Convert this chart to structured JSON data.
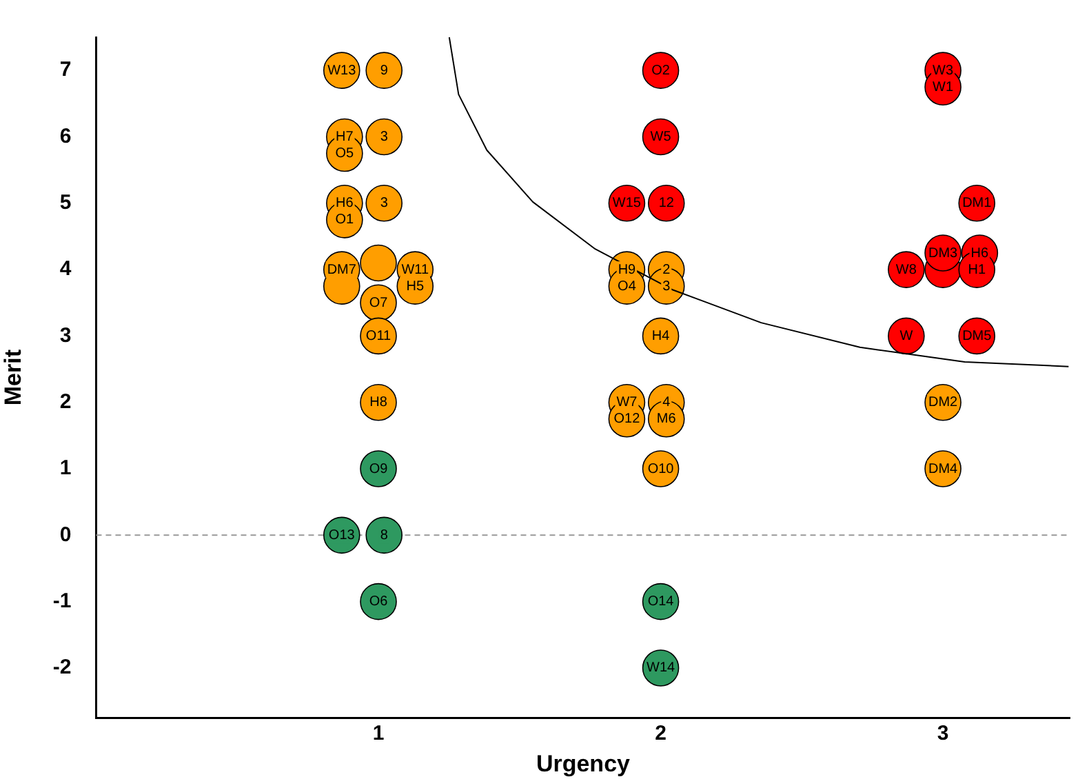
{
  "chart_data": {
    "type": "scatter",
    "xlabel": "Urgency",
    "ylabel": "Merit",
    "xlim": [
      0,
      3.45
    ],
    "ylim": [
      -2.75,
      7.5
    ],
    "xticks": [
      1,
      2,
      3
    ],
    "yticks": [
      -2,
      -1,
      0,
      1,
      2,
      3,
      4,
      5,
      6,
      7
    ],
    "grid": false,
    "legend": false,
    "marker": "circle",
    "ref_lines": [
      {
        "axis": "y",
        "value": 0,
        "color": "#999999",
        "line_style": "dashed"
      }
    ],
    "series": [
      {
        "color": "#ff9e00",
        "x": [
          1.02,
          0.87,
          1.02,
          0.88,
          0.88,
          1.02,
          0.88,
          0.88,
          1.0,
          1.13,
          0.87,
          0.87,
          1.13,
          1.0,
          1.0,
          1.0,
          2.02,
          1.88,
          2.02,
          1.88,
          2.0,
          2.02,
          1.88,
          2.02,
          1.88,
          2.0,
          3.0,
          3.0
        ],
        "values": [
          7,
          7,
          6,
          6,
          5.75,
          5,
          5,
          4.75,
          4.1,
          4,
          4,
          3.75,
          3.75,
          3.5,
          3,
          2,
          4,
          4,
          3.75,
          3.75,
          3,
          2,
          2,
          1.75,
          1.75,
          1,
          2,
          1
        ]
      },
      {
        "color": "#ff0000",
        "x": [
          2.0,
          2.0,
          2.02,
          1.88,
          3.0,
          3.0,
          3.12,
          3.13,
          3.0,
          2.87,
          3.12,
          3.0,
          2.87,
          3.12
        ],
        "values": [
          7,
          6,
          5,
          5,
          7,
          6.75,
          5,
          4.25,
          4,
          4,
          4,
          4.25,
          3,
          3
        ]
      },
      {
        "color": "#2e9960",
        "x": [
          1.0,
          1.02,
          0.87,
          1.0,
          2.0,
          2.0
        ],
        "values": [
          1,
          0,
          0,
          -1,
          -1,
          -2
        ]
      },
      {
        "type": "line",
        "color": "#000000",
        "marker": "none",
        "line_style": "solid",
        "x": [
          1.251,
          1.284,
          1.384,
          1.547,
          1.768,
          2.04,
          2.356,
          2.706,
          3.077,
          3.445
        ],
        "values": [
          7.5,
          6.64,
          5.8,
          5.02,
          4.31,
          3.7,
          3.2,
          2.83,
          2.61,
          2.54
        ]
      }
    ],
    "annotations": [
      {
        "text": "9",
        "x": 1.02,
        "y": 7
      },
      {
        "text": "W13",
        "x": 0.87,
        "y": 7
      },
      {
        "text": "3",
        "x": 1.02,
        "y": 6
      },
      {
        "text": "H7",
        "x": 0.88,
        "y": 6
      },
      {
        "text": "O5",
        "x": 0.88,
        "y": 5.75
      },
      {
        "text": "3",
        "x": 1.02,
        "y": 5
      },
      {
        "text": "H6",
        "x": 0.88,
        "y": 5
      },
      {
        "text": "O1",
        "x": 0.88,
        "y": 4.75
      },
      {
        "text": "W11",
        "x": 1.13,
        "y": 4
      },
      {
        "text": "DM7",
        "x": 0.87,
        "y": 4
      },
      {
        "text": "H5",
        "x": 1.13,
        "y": 3.75
      },
      {
        "text": "O7",
        "x": 1.0,
        "y": 3.5
      },
      {
        "text": "O11",
        "x": 1.0,
        "y": 3
      },
      {
        "text": "H8",
        "x": 1.0,
        "y": 2
      },
      {
        "text": "2",
        "x": 2.02,
        "y": 4
      },
      {
        "text": "H9",
        "x": 1.88,
        "y": 4
      },
      {
        "text": "3",
        "x": 2.02,
        "y": 3.75
      },
      {
        "text": "O4",
        "x": 1.88,
        "y": 3.75
      },
      {
        "text": "H4",
        "x": 2.0,
        "y": 3
      },
      {
        "text": "4",
        "x": 2.02,
        "y": 2
      },
      {
        "text": "W7",
        "x": 1.88,
        "y": 2
      },
      {
        "text": "M6",
        "x": 2.02,
        "y": 1.75
      },
      {
        "text": "O12",
        "x": 1.88,
        "y": 1.75
      },
      {
        "text": "O10",
        "x": 2.0,
        "y": 1
      },
      {
        "text": "DM2",
        "x": 3.0,
        "y": 2
      },
      {
        "text": "DM4",
        "x": 3.0,
        "y": 1
      },
      {
        "text": "O2",
        "x": 2.0,
        "y": 7
      },
      {
        "text": "W5",
        "x": 2.0,
        "y": 6
      },
      {
        "text": "12",
        "x": 2.02,
        "y": 5
      },
      {
        "text": "W15",
        "x": 1.88,
        "y": 5
      },
      {
        "text": "W3",
        "x": 3.0,
        "y": 7
      },
      {
        "text": "W1",
        "x": 3.0,
        "y": 6.75
      },
      {
        "text": "DM1",
        "x": 3.12,
        "y": 5
      },
      {
        "text": "H6",
        "x": 3.13,
        "y": 4.25
      },
      {
        "text": "W8",
        "x": 2.87,
        "y": 4
      },
      {
        "text": "H1",
        "x": 3.12,
        "y": 4
      },
      {
        "text": "DM3",
        "x": 3.0,
        "y": 4.25
      },
      {
        "text": "W",
        "x": 2.87,
        "y": 3
      },
      {
        "text": "DM5",
        "x": 3.12,
        "y": 3
      },
      {
        "text": "O9",
        "x": 1.0,
        "y": 1
      },
      {
        "text": "8",
        "x": 1.02,
        "y": 0
      },
      {
        "text": "O13",
        "x": 0.87,
        "y": 0
      },
      {
        "text": "O6",
        "x": 1.0,
        "y": -1
      },
      {
        "text": "O14",
        "x": 2.0,
        "y": -1
      },
      {
        "text": "W14",
        "x": 2.0,
        "y": -2
      }
    ]
  }
}
